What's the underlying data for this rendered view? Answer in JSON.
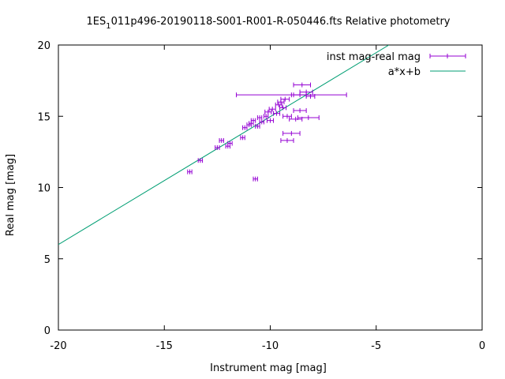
{
  "chart_data": {
    "type": "scatter",
    "title_main": "1ES",
    "title_sub": "1",
    "title_rest": "011p496-20190118-S001-R001-R-050446.fts Relative photometry",
    "xlabel": "Instrument mag [mag]",
    "ylabel": "Real mag [mag]",
    "xlim": [
      -20,
      0
    ],
    "ylim": [
      0,
      20
    ],
    "xticks": [
      -20,
      -15,
      -10,
      -5,
      0
    ],
    "yticks": [
      0,
      5,
      10,
      15,
      20
    ],
    "grid": false,
    "legend_position": "top-right",
    "series": [
      {
        "name": "inst mag-real mag",
        "color": "#9400d3",
        "style": "points-with-x-errorbars",
        "points": [
          {
            "x": -13.8,
            "y": 11.1,
            "xerr": 0.1
          },
          {
            "x": -13.3,
            "y": 11.9,
            "xerr": 0.1
          },
          {
            "x": -12.5,
            "y": 12.8,
            "xerr": 0.1
          },
          {
            "x": -12.3,
            "y": 13.3,
            "xerr": 0.1
          },
          {
            "x": -12.0,
            "y": 12.9,
            "xerr": 0.1
          },
          {
            "x": -11.9,
            "y": 13.1,
            "xerr": 0.1
          },
          {
            "x": -11.3,
            "y": 13.5,
            "xerr": 0.1
          },
          {
            "x": -11.2,
            "y": 14.2,
            "xerr": 0.1
          },
          {
            "x": -11.0,
            "y": 14.4,
            "xerr": 0.1
          },
          {
            "x": -10.9,
            "y": 14.5,
            "xerr": 0.1
          },
          {
            "x": -10.8,
            "y": 14.7,
            "xerr": 0.1
          },
          {
            "x": -10.7,
            "y": 10.6,
            "xerr": 0.1
          },
          {
            "x": -10.6,
            "y": 14.3,
            "xerr": 0.1
          },
          {
            "x": -10.5,
            "y": 14.9,
            "xerr": 0.1
          },
          {
            "x": -10.4,
            "y": 14.6,
            "xerr": 0.1
          },
          {
            "x": -10.2,
            "y": 15.0,
            "xerr": 0.1
          },
          {
            "x": -10.1,
            "y": 15.3,
            "xerr": 0.15
          },
          {
            "x": -10.0,
            "y": 14.7,
            "xerr": 0.15
          },
          {
            "x": -9.9,
            "y": 15.5,
            "xerr": 0.15
          },
          {
            "x": -9.7,
            "y": 15.2,
            "xerr": 0.15
          },
          {
            "x": -9.6,
            "y": 15.8,
            "xerr": 0.15
          },
          {
            "x": -9.5,
            "y": 16.0,
            "xerr": 0.15
          },
          {
            "x": -9.4,
            "y": 15.6,
            "xerr": 0.15
          },
          {
            "x": -9.3,
            "y": 16.2,
            "xerr": 0.2
          },
          {
            "x": -9.2,
            "y": 15.0,
            "xerr": 0.2
          },
          {
            "x": -9.0,
            "y": 16.5,
            "xerr": 2.6
          },
          {
            "x": -9.2,
            "y": 13.3,
            "xerr": 0.3
          },
          {
            "x": -9.0,
            "y": 13.8,
            "xerr": 0.4
          },
          {
            "x": -8.8,
            "y": 14.8,
            "xerr": 0.3
          },
          {
            "x": -8.6,
            "y": 15.4,
            "xerr": 0.3
          },
          {
            "x": -8.6,
            "y": 16.5,
            "xerr": 0.3
          },
          {
            "x": -8.5,
            "y": 17.2,
            "xerr": 0.4
          },
          {
            "x": -8.3,
            "y": 16.7,
            "xerr": 0.3
          },
          {
            "x": -8.2,
            "y": 14.9,
            "xerr": 0.5
          },
          {
            "x": -8.1,
            "y": 16.4,
            "xerr": 0.2
          }
        ]
      },
      {
        "name": "a*x+b",
        "color": "#009e73",
        "style": "line",
        "line_points": [
          {
            "x": -20.0,
            "y": 6.0
          },
          {
            "x": -4.4,
            "y": 20.0
          }
        ]
      }
    ]
  }
}
